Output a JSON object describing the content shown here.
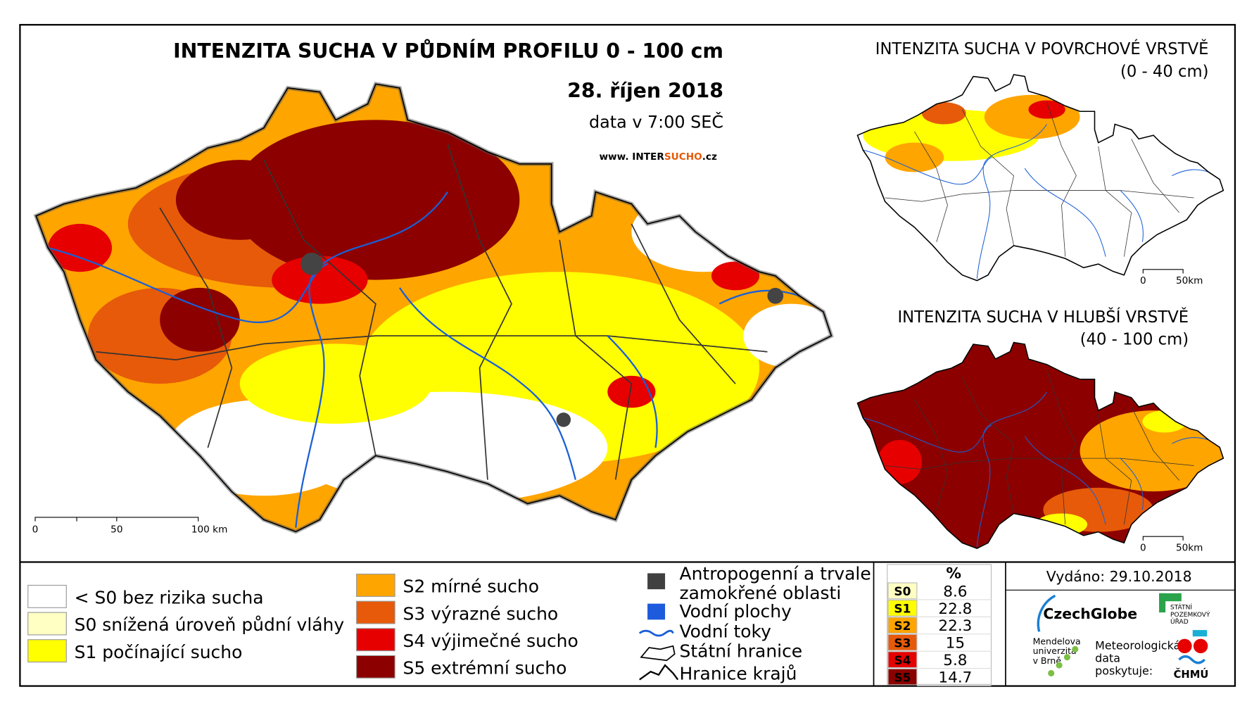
{
  "map": {
    "title": "INTENZITA SUCHA V PŮDNÍM PROFILU 0 - 100 cm",
    "date": "28. říjen 2018",
    "time": "data v 7:00 SEČ",
    "website": [
      "www. INTER",
      "SUCHO",
      ".cz"
    ],
    "scale": [
      "0",
      "50",
      "100 km"
    ],
    "inset_top": {
      "title": "INTENZITA SUCHA V POVRCHOVÉ VRSTVĚ",
      "depth": "(0 - 40 cm)",
      "scale": [
        "0",
        "50km"
      ]
    },
    "inset_bottom": {
      "title": "INTENZITA SUCHA V HLUBŠÍ VRSTVĚ",
      "depth": "(40 - 100 cm)",
      "scale": [
        "0",
        "50km"
      ]
    }
  },
  "legend": {
    "drought": [
      {
        "label": "< S0 bez rizika sucha",
        "color": "#ffffff"
      },
      {
        "label": "S0 snížená úroveň půdní vláhy",
        "color": "#ffffc4"
      },
      {
        "label": "S1 počínající sucho",
        "color": "#ffff00"
      },
      {
        "label": "S2 mírné sucho",
        "color": "#ffa500"
      },
      {
        "label": "S3 výrazné sucho",
        "color": "#e65a0a"
      },
      {
        "label": "S4 výjimečné sucho",
        "color": "#e60000"
      },
      {
        "label": "S5 extrémní sucho",
        "color": "#8c0000"
      }
    ],
    "other": [
      {
        "lines": [
          "Antropogenní a trvale",
          "zamokřené oblasti"
        ]
      },
      {
        "lines": [
          "Vodní plochy"
        ]
      },
      {
        "lines": [
          "Vodní toky"
        ]
      },
      {
        "lines": [
          "Státní hranice"
        ]
      },
      {
        "lines": [
          "Hranice krajů"
        ]
      }
    ]
  },
  "table": {
    "header": "%",
    "rows": [
      {
        "class": "S0",
        "value": 8.6,
        "color": "#ffffc4"
      },
      {
        "class": "S1",
        "value": 22.8,
        "color": "#ffff00"
      },
      {
        "class": "S2",
        "value": 22.3,
        "color": "#ffa500"
      },
      {
        "class": "S3",
        "value": 15.0,
        "color": "#e65a0a"
      },
      {
        "class": "S4",
        "value": 5.8,
        "color": "#e60000"
      },
      {
        "class": "S5",
        "value": 14.7,
        "color": "#8c0000"
      }
    ]
  },
  "footer": {
    "issued": "Vydáno: 29.10.2018",
    "czechglobe": "CzechGlobe",
    "mendel": [
      "Mendelova",
      "univerzita",
      "v Brně"
    ],
    "spu": [
      "STÁTNÍ",
      "POZEMKOVÝ",
      "ÚŘAD"
    ],
    "chmu_note": [
      "Meteorologická",
      "data",
      "poskytuje:"
    ],
    "chmu": "ČHMÚ"
  }
}
